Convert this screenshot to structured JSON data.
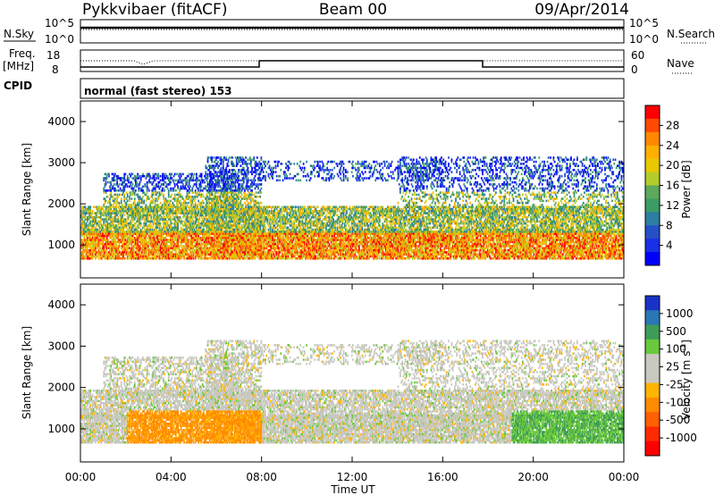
{
  "header": {
    "station": "Pykkvibaer (fitACF)",
    "beam": "Beam 00",
    "date": "09/Apr/2014"
  },
  "top_panels": {
    "nsky": {
      "label": "N.Sky",
      "right_label": "N.Search",
      "ticks": [
        "10^5",
        "10^0"
      ]
    },
    "freq": {
      "label": "Freq.",
      "unit": "[MHz]",
      "ticks": [
        "18",
        "8"
      ],
      "right_label": "Nave",
      "right_ticks": [
        "60",
        "0"
      ]
    },
    "cpid": {
      "label": "CPID",
      "value": "normal (fast stereo) 153"
    }
  },
  "axes": {
    "ylabel": "Slant Range [km]",
    "xlabel": "Time UT",
    "yticks": [
      "4000",
      "3000",
      "2000",
      "1000"
    ],
    "xticks": [
      "00:00",
      "04:00",
      "08:00",
      "12:00",
      "16:00",
      "20:00",
      "00:00"
    ]
  },
  "colorbars": {
    "power": {
      "label": "Power [dB]",
      "ticks": [
        "28",
        "24",
        "20",
        "16",
        "12",
        "8",
        "4"
      ],
      "colors": [
        "#ff0000",
        "#ff4a00",
        "#ff8800",
        "#ffb000",
        "#e8c800",
        "#b4cc2a",
        "#5ca85c",
        "#3c9c64",
        "#2d7ea0",
        "#2550c8",
        "#1a30e6",
        "#0000ff"
      ]
    },
    "velocity": {
      "label": "Velocity [m s",
      "label_sup": "-1",
      "label_end": "]",
      "ticks": [
        "1000",
        "500",
        "100",
        "25",
        "-25",
        "-100",
        "-500",
        "-1000"
      ],
      "colors": [
        "#1a32c8",
        "#2a78b4",
        "#3f9c58",
        "#6ac83c",
        "#c8c8c0",
        "#c8c8c0",
        "#ffb400",
        "#ff8c00",
        "#ff6000",
        "#ff2a00",
        "#ff0000"
      ]
    }
  },
  "chart_data": [
    {
      "type": "heatmap",
      "name": "power",
      "x_range_hours": [
        0,
        24
      ],
      "y_range_km": [
        200,
        4500
      ],
      "x_label": "Time UT",
      "y_label": "Slant Range [km]"
    },
    {
      "type": "heatmap",
      "name": "velocity",
      "x_range_hours": [
        0,
        24
      ],
      "y_range_km": [
        200,
        4500
      ],
      "x_label": "Time UT",
      "y_label": "Slant Range [km]"
    }
  ]
}
